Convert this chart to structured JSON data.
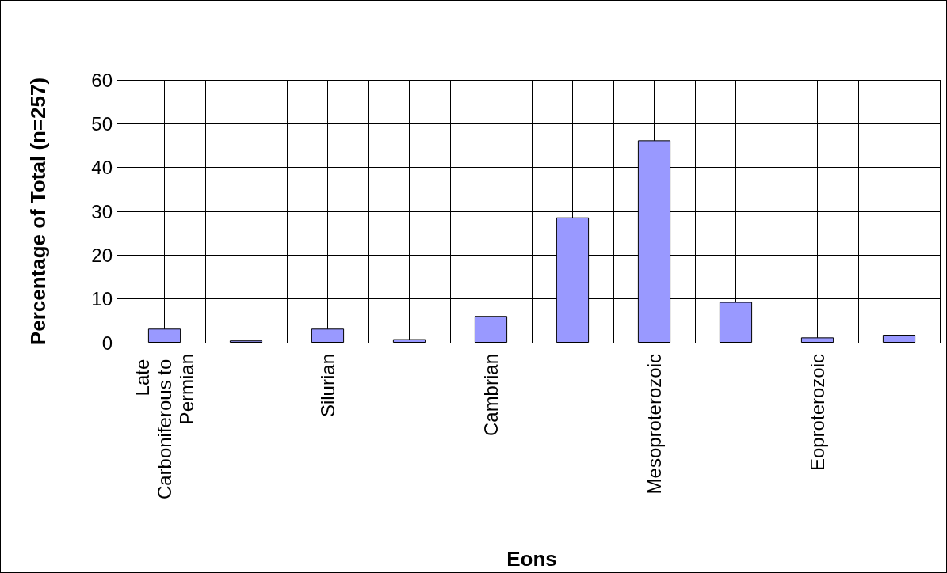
{
  "chart_data": {
    "type": "bar",
    "xlabel": "Eons",
    "ylabel": "Percentage of Total (n=257)",
    "categories": [
      "Late Carboniferous to Permian",
      null,
      "Silurian",
      null,
      "Cambrian",
      null,
      "Mesoproterozoic",
      null,
      "Eoproterozoic",
      null
    ],
    "values": [
      3.2,
      0.5,
      3.2,
      0.8,
      6.1,
      28.6,
      46.2,
      9.3,
      1.2,
      1.8
    ],
    "color": "#9999ff",
    "ylim": [
      0,
      60
    ],
    "yticks": [
      0,
      10,
      20,
      30,
      40,
      50,
      60
    ],
    "grid": true
  }
}
